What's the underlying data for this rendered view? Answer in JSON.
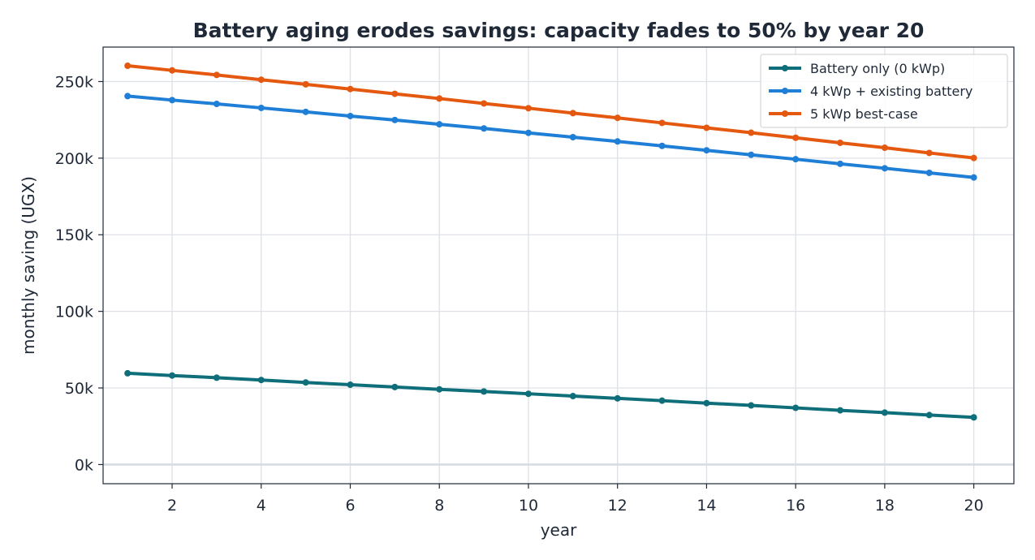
{
  "chart_data": {
    "type": "line",
    "title": "Battery aging erodes savings: capacity fades to 50% by year 20",
    "xlabel": "year",
    "ylabel": "monthly saving (UGX)",
    "xlim": [
      0.45,
      20.9
    ],
    "ylim": [
      -12500,
      272500
    ],
    "xticks": [
      2,
      4,
      6,
      8,
      10,
      12,
      14,
      16,
      18,
      20
    ],
    "xtick_labels": [
      "2",
      "4",
      "6",
      "8",
      "10",
      "12",
      "14",
      "16",
      "18",
      "20"
    ],
    "yticks": [
      0,
      50000,
      100000,
      150000,
      200000,
      250000
    ],
    "ytick_labels": [
      "0k",
      "50k",
      "100k",
      "150k",
      "200k",
      "250k"
    ],
    "grid": true,
    "legend_position": "top-right",
    "x": [
      1,
      2,
      3,
      4,
      5,
      6,
      7,
      8,
      9,
      10,
      11,
      12,
      13,
      14,
      15,
      16,
      17,
      18,
      19,
      20
    ],
    "series": [
      {
        "name": "Battery only (0 kWp)",
        "color": "#0e6e7a",
        "values": [
          59600,
          58100,
          56700,
          55200,
          53600,
          52100,
          50600,
          49100,
          47700,
          46200,
          44700,
          43200,
          41700,
          40100,
          38600,
          37000,
          35400,
          33900,
          32300,
          30800
        ]
      },
      {
        "name": "4 kWp + existing battery",
        "color": "#1f7ed6",
        "values": [
          240500,
          237900,
          235400,
          232800,
          230200,
          227500,
          224900,
          222100,
          219400,
          216500,
          213700,
          210900,
          208000,
          205100,
          202200,
          199300,
          196300,
          193400,
          190400,
          187400
        ]
      },
      {
        "name": "5 kWp best-case",
        "color": "#e4580f",
        "values": [
          260300,
          257300,
          254300,
          251200,
          248200,
          245100,
          242000,
          238900,
          235700,
          232600,
          229400,
          226300,
          223000,
          219800,
          216600,
          213300,
          210000,
          206800,
          203400,
          200100
        ]
      }
    ]
  }
}
